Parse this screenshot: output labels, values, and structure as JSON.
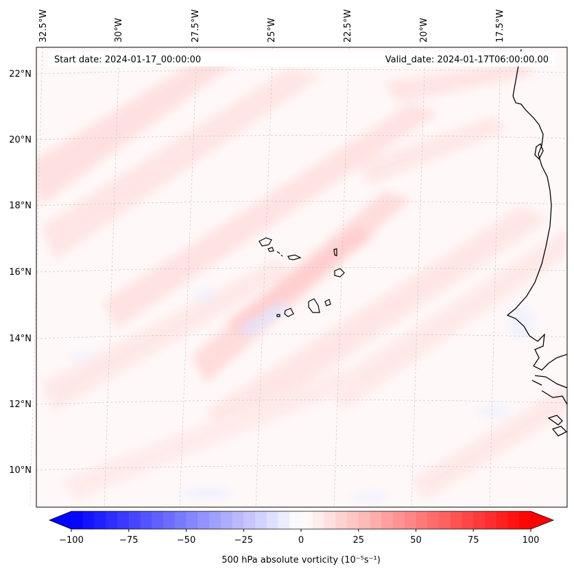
{
  "map": {
    "start_date": "Start date: 2024-01-17_00:00:00",
    "valid_date": "Valid_date: 2024-01-17T06:00:00.00",
    "lon_labels": [
      "32.5°W",
      "30°W",
      "27.5°W",
      "25°W",
      "22.5°W",
      "20°W",
      "17.5°W"
    ],
    "lat_labels": [
      "22°N",
      "20°N",
      "18°N",
      "16°N",
      "14°N",
      "12°N",
      "10°N"
    ],
    "colors": {
      "positive": "#ff0000",
      "negative": "#0000ff",
      "coastline": "#000000",
      "gridline": "#bbbbbb"
    }
  },
  "colorbar": {
    "label": "500 hPa absolute vorticity (10⁻⁵s⁻¹)",
    "ticks": [
      "−100",
      "−75",
      "−50",
      "−25",
      "0",
      "25",
      "50",
      "75",
      "100"
    ],
    "range": [
      -100,
      100
    ]
  }
}
